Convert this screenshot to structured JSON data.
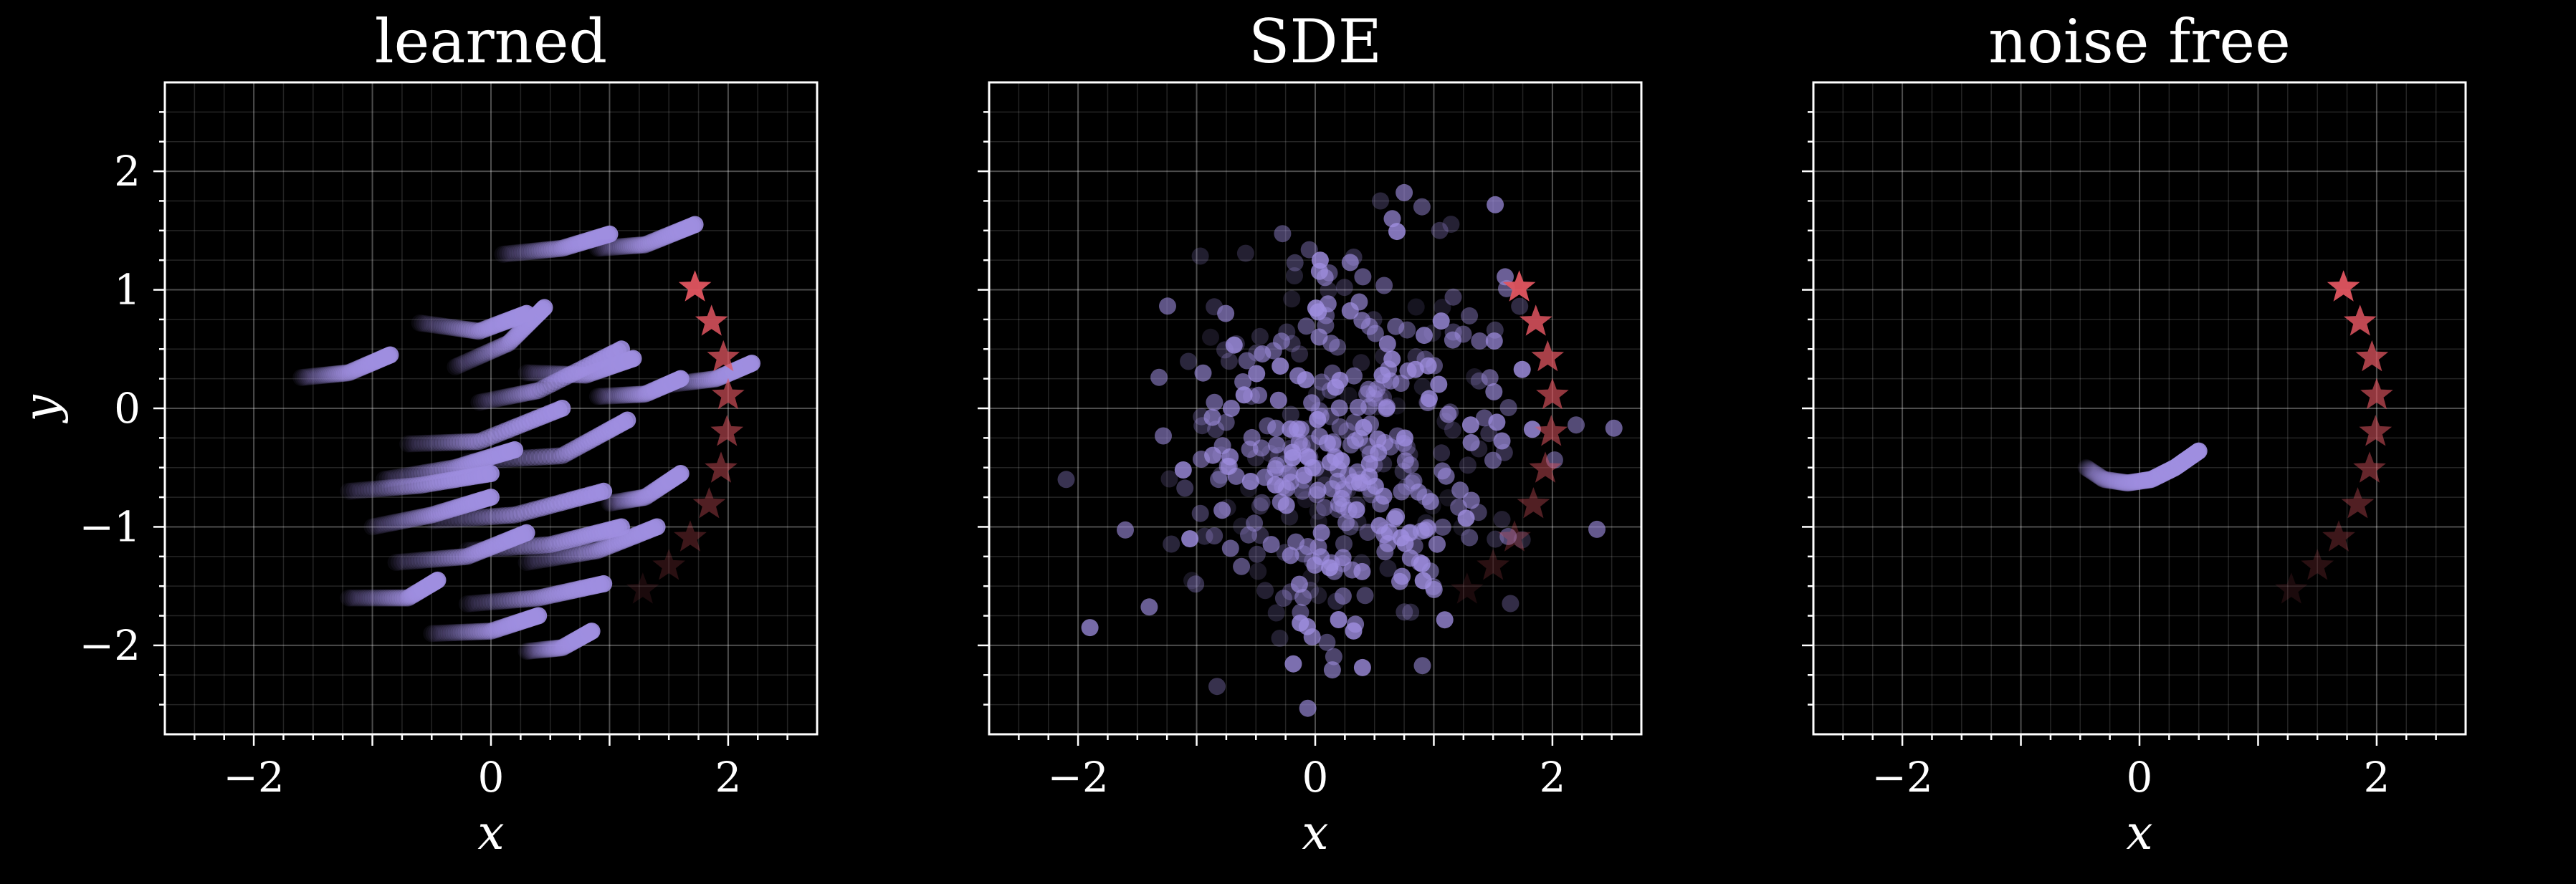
{
  "colors": {
    "background": "#000000",
    "axes": "#ffffff",
    "points": "#9f8ee0",
    "stars": "#e05560"
  },
  "chart_data": [
    {
      "type": "scatter",
      "title": "learned",
      "xlabel": "x",
      "ylabel": "y",
      "xlim": [
        -2.75,
        2.75
      ],
      "ylim": [
        -2.75,
        2.75
      ],
      "xticks": [
        -2,
        0,
        2
      ],
      "yticks": [
        -2,
        -1,
        0,
        1,
        2
      ],
      "grid": true,
      "series": [
        {
          "marker": "circle",
          "color": "#9f8ee0",
          "fade": "early points faint, later points solid",
          "trajectories": [
            [
              [
                -1.6,
                0.26
              ],
              [
                -1.2,
                0.3
              ],
              [
                -0.85,
                0.45
              ]
            ],
            [
              [
                -0.3,
                0.35
              ],
              [
                0.15,
                0.55
              ],
              [
                0.45,
                0.85
              ]
            ],
            [
              [
                0.1,
                1.3
              ],
              [
                0.6,
                1.35
              ],
              [
                1.0,
                1.47
              ]
            ],
            [
              [
                0.9,
                1.35
              ],
              [
                1.3,
                1.38
              ],
              [
                1.72,
                1.55
              ]
            ],
            [
              [
                -0.6,
                0.72
              ],
              [
                -0.1,
                0.65
              ],
              [
                0.3,
                0.8
              ]
            ],
            [
              [
                -0.1,
                0.05
              ],
              [
                0.4,
                0.15
              ],
              [
                1.1,
                0.5
              ]
            ],
            [
              [
                0.3,
                0.3
              ],
              [
                0.8,
                0.28
              ],
              [
                1.2,
                0.42
              ]
            ],
            [
              [
                -0.7,
                -0.3
              ],
              [
                -0.1,
                -0.28
              ],
              [
                0.6,
                0.0
              ]
            ],
            [
              [
                -0.2,
                -0.45
              ],
              [
                0.6,
                -0.4
              ],
              [
                1.15,
                -0.1
              ]
            ],
            [
              [
                -0.9,
                -0.6
              ],
              [
                -0.3,
                -0.5
              ],
              [
                0.2,
                -0.35
              ]
            ],
            [
              [
                -1.2,
                -0.7
              ],
              [
                -0.6,
                -0.65
              ],
              [
                0.0,
                -0.55
              ]
            ],
            [
              [
                -0.5,
                -0.95
              ],
              [
                0.2,
                -0.9
              ],
              [
                0.95,
                -0.7
              ]
            ],
            [
              [
                -1.0,
                -1.0
              ],
              [
                -0.5,
                -0.9
              ],
              [
                0.0,
                -0.75
              ]
            ],
            [
              [
                -0.2,
                -1.2
              ],
              [
                0.5,
                -1.15
              ],
              [
                1.1,
                -1.0
              ]
            ],
            [
              [
                0.3,
                -1.3
              ],
              [
                0.9,
                -1.2
              ],
              [
                1.4,
                -1.0
              ]
            ],
            [
              [
                -0.8,
                -1.3
              ],
              [
                -0.2,
                -1.25
              ],
              [
                0.3,
                -1.05
              ]
            ],
            [
              [
                -1.2,
                -1.6
              ],
              [
                -0.7,
                -1.6
              ],
              [
                -0.45,
                -1.45
              ]
            ],
            [
              [
                -0.2,
                -1.65
              ],
              [
                0.4,
                -1.6
              ],
              [
                0.95,
                -1.48
              ]
            ],
            [
              [
                -0.5,
                -1.9
              ],
              [
                0.0,
                -1.88
              ],
              [
                0.4,
                -1.75
              ]
            ],
            [
              [
                0.3,
                -2.05
              ],
              [
                0.6,
                -2.02
              ],
              [
                0.85,
                -1.88
              ]
            ],
            [
              [
                1.0,
                -0.8
              ],
              [
                1.3,
                -0.75
              ],
              [
                1.6,
                -0.55
              ]
            ],
            [
              [
                1.5,
                0.2
              ],
              [
                1.9,
                0.25
              ],
              [
                2.2,
                0.38
              ]
            ],
            [
              [
                0.9,
                0.1
              ],
              [
                1.3,
                0.12
              ],
              [
                1.6,
                0.25
              ]
            ]
          ]
        },
        {
          "marker": "star",
          "color": "#e05560",
          "points": [
            [
              1.72,
              1.02
            ],
            [
              1.86,
              0.73
            ],
            [
              1.96,
              0.43
            ],
            [
              2.0,
              0.11
            ],
            [
              1.99,
              -0.2
            ],
            [
              1.94,
              -0.51
            ],
            [
              1.84,
              -0.81
            ],
            [
              1.68,
              -1.09
            ],
            [
              1.5,
              -1.33
            ],
            [
              1.28,
              -1.53
            ]
          ],
          "opacity": [
            0.95,
            0.85,
            0.75,
            0.65,
            0.55,
            0.45,
            0.36,
            0.27,
            0.19,
            0.12
          ]
        }
      ]
    },
    {
      "type": "scatter",
      "title": "SDE",
      "xlabel": "x",
      "ylabel": "",
      "xlim": [
        -2.75,
        2.75
      ],
      "ylim": [
        -2.75,
        2.75
      ],
      "xticks": [
        -2,
        0,
        2
      ],
      "yticks": [
        -2,
        -1,
        0,
        1,
        2
      ],
      "grid": true,
      "series": [
        {
          "marker": "circle",
          "color": "#9f8ee0",
          "cloud": {
            "center": [
              0.3,
              -0.4
            ],
            "spread": [
              0.72,
              0.75
            ],
            "count": 420,
            "seed": 7
          },
          "extra_points": [
            [
              0.55,
              1.75
            ],
            [
              0.75,
              1.82
            ],
            [
              0.9,
              1.7
            ],
            [
              1.05,
              1.5
            ],
            [
              0.65,
              1.6
            ],
            [
              2.2,
              -0.14
            ],
            [
              -2.1,
              -0.6
            ],
            [
              -1.9,
              -1.85
            ],
            [
              -0.85,
              0.05
            ],
            [
              1.3,
              0.78
            ]
          ]
        },
        {
          "marker": "star",
          "color": "#e05560",
          "points": [
            [
              1.72,
              1.02
            ],
            [
              1.86,
              0.73
            ],
            [
              1.96,
              0.43
            ],
            [
              2.0,
              0.11
            ],
            [
              1.99,
              -0.2
            ],
            [
              1.94,
              -0.51
            ],
            [
              1.84,
              -0.81
            ],
            [
              1.68,
              -1.09
            ],
            [
              1.5,
              -1.33
            ],
            [
              1.28,
              -1.53
            ]
          ],
          "opacity": [
            0.95,
            0.85,
            0.75,
            0.65,
            0.55,
            0.45,
            0.36,
            0.27,
            0.19,
            0.12
          ]
        }
      ]
    },
    {
      "type": "scatter",
      "title": "noise free",
      "xlabel": "x",
      "ylabel": "",
      "xlim": [
        -2.75,
        2.75
      ],
      "ylim": [
        -2.75,
        2.75
      ],
      "xticks": [
        -2,
        0,
        2
      ],
      "yticks": [
        -2,
        -1,
        0,
        1,
        2
      ],
      "grid": true,
      "series": [
        {
          "marker": "circle",
          "color": "#9f8ee0",
          "trajectories": [
            [
              [
                -0.45,
                -0.5
              ],
              [
                -0.3,
                -0.6
              ],
              [
                -0.1,
                -0.63
              ],
              [
                0.1,
                -0.6
              ],
              [
                0.3,
                -0.5
              ],
              [
                0.5,
                -0.36
              ]
            ]
          ]
        },
        {
          "marker": "star",
          "color": "#e05560",
          "points": [
            [
              1.72,
              1.02
            ],
            [
              1.86,
              0.73
            ],
            [
              1.96,
              0.43
            ],
            [
              2.0,
              0.11
            ],
            [
              1.99,
              -0.2
            ],
            [
              1.94,
              -0.51
            ],
            [
              1.84,
              -0.81
            ],
            [
              1.68,
              -1.09
            ],
            [
              1.5,
              -1.33
            ],
            [
              1.28,
              -1.53
            ]
          ],
          "opacity": [
            0.95,
            0.85,
            0.75,
            0.65,
            0.55,
            0.45,
            0.36,
            0.27,
            0.19,
            0.12
          ]
        }
      ]
    }
  ]
}
